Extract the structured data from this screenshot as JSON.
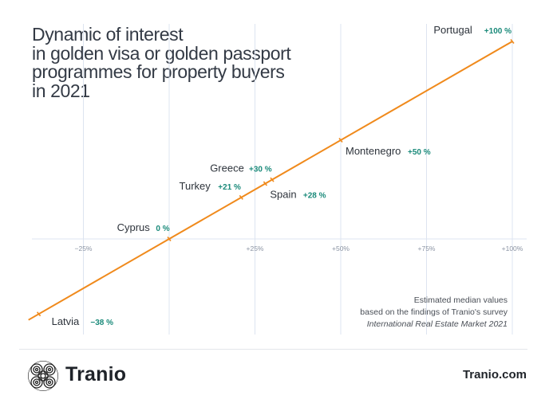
{
  "title_lines": [
    "Dynamic of interest",
    "in golden visa or golden passport",
    "programmes for property buyers",
    "in 2021"
  ],
  "note": {
    "line1": "Estimated median values",
    "line2": "based on the findings of Tranio's survey",
    "line3": "International Real Estate Market 2021"
  },
  "footer": {
    "brand": "Tranio",
    "site": "Tranio.com"
  },
  "colors": {
    "line": "#f08a1c",
    "value": "#1a8a7a",
    "label": "#2d333b",
    "grid": "#dde4f0",
    "tick": "#8a93a3"
  },
  "chart_data": {
    "type": "scatter",
    "xlim": [
      -40,
      100
    ],
    "x_ticks": [
      {
        "value": -25,
        "label": "−25%"
      },
      {
        "value": 25,
        "label": "+25%"
      },
      {
        "value": 50,
        "label": "+50%"
      },
      {
        "value": 75,
        "label": "+75%"
      },
      {
        "value": 100,
        "label": "+100%"
      }
    ],
    "trend_line": true,
    "points": [
      {
        "country": "Latvia",
        "x": -38,
        "value_label": "−38 %",
        "label_pos": "below"
      },
      {
        "country": "Cyprus",
        "x": 0,
        "value_label": "0 %",
        "label_pos": "above-left"
      },
      {
        "country": "Turkey",
        "x": 21,
        "value_label": "+21 %",
        "label_pos": "above-left"
      },
      {
        "country": "Spain",
        "x": 28,
        "value_label": "+28 %",
        "label_pos": "below-right"
      },
      {
        "country": "Greece",
        "x": 30,
        "value_label": "+30 %",
        "label_pos": "above-left"
      },
      {
        "country": "Montenegro",
        "x": 50,
        "value_label": "+50 %",
        "label_pos": "below-right"
      },
      {
        "country": "Portugal",
        "x": 100,
        "value_label": "+100 %",
        "label_pos": "above-left"
      }
    ]
  }
}
